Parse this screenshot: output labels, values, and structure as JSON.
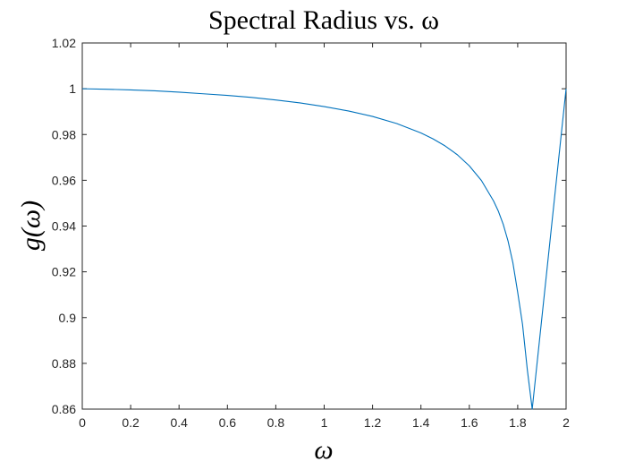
{
  "chart_data": {
    "type": "line",
    "title": "Spectral Radius vs. ω",
    "xlabel": "ω",
    "ylabel": "g(ω)",
    "xlim": [
      0,
      2
    ],
    "ylim": [
      0.86,
      1.02
    ],
    "x_ticks": [
      "0",
      "0.2",
      "0.4",
      "0.6",
      "0.8",
      "1",
      "1.2",
      "1.4",
      "1.6",
      "1.8",
      "2"
    ],
    "y_ticks": [
      "0.86",
      "0.88",
      "0.9",
      "0.92",
      "0.94",
      "0.96",
      "0.98",
      "1",
      "1.02"
    ],
    "grid": false,
    "legend": "none",
    "series": [
      {
        "color": "#0072BD",
        "x": [
          0,
          0.1,
          0.2,
          0.3,
          0.4,
          0.5,
          0.6,
          0.7,
          0.8,
          0.9,
          1.0,
          1.1,
          1.2,
          1.3,
          1.4,
          1.45,
          1.5,
          1.55,
          1.6,
          1.65,
          1.7,
          1.72,
          1.74,
          1.76,
          1.78,
          1.8,
          1.82,
          1.84,
          1.86,
          2.0
        ],
        "y": [
          1.0,
          0.9998,
          0.9995,
          0.9991,
          0.9985,
          0.9978,
          0.9971,
          0.9962,
          0.9951,
          0.9938,
          0.9922,
          0.9903,
          0.9879,
          0.9848,
          0.9807,
          0.9781,
          0.975,
          0.9712,
          0.9663,
          0.9599,
          0.951,
          0.9465,
          0.9408,
          0.9335,
          0.924,
          0.911,
          0.897,
          0.877,
          0.86,
          1.0
        ]
      }
    ]
  }
}
